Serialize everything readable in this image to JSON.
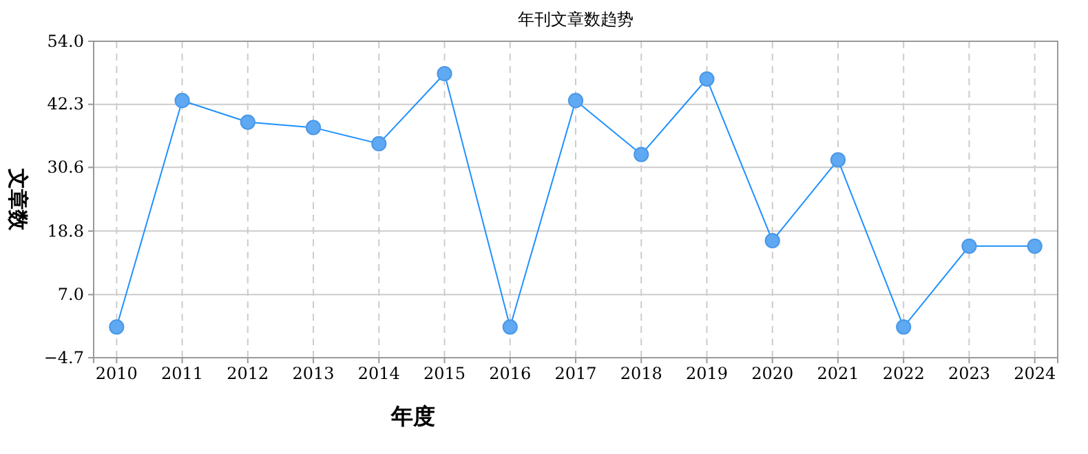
{
  "chart_data": {
    "type": "line",
    "title": "年刊文章数趋势",
    "xlabel": "年度",
    "ylabel": "文章数",
    "categories": [
      "2010",
      "2011",
      "2012",
      "2013",
      "2014",
      "2015",
      "2016",
      "2017",
      "2018",
      "2019",
      "2020",
      "2021",
      "2022",
      "2023",
      "2024"
    ],
    "series": [
      {
        "color": "#1e90ff",
        "values": [
          1,
          43,
          39,
          38,
          35,
          48,
          1,
          43,
          33,
          47,
          17,
          32,
          1,
          16,
          16
        ]
      }
    ],
    "ylim": [
      -4.7,
      54
    ],
    "yticks": [
      -4.7,
      {
        "value": 7,
        "label": "7.0"
      },
      18.8,
      30.6,
      42.3,
      {
        "value": 54,
        "label": "54.0"
      }
    ],
    "grid": true,
    "marker": "circle",
    "line_style": "solid"
  }
}
